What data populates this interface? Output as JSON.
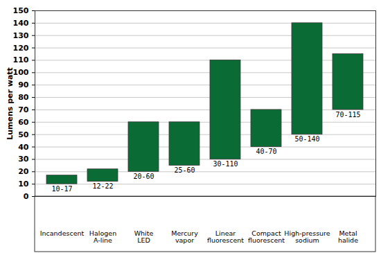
{
  "chart_data": {
    "type": "range_bar",
    "y_label": "Lumens per watt",
    "categories": [
      "Incandescent",
      "Halogen\nA-line",
      "White\nLED",
      "Mercury\nvapor",
      "Linear\nfluorescent",
      "Compact\nfluorescent",
      "High-pressure\nsodium",
      "Metal\nhalide"
    ],
    "values": [
      [
        10,
        17
      ],
      [
        12,
        22
      ],
      [
        20,
        60
      ],
      [
        25,
        60
      ],
      [
        30,
        110
      ],
      [
        40,
        70
      ],
      [
        50,
        140
      ],
      [
        70,
        115
      ]
    ],
    "value_labels": [
      "10-17",
      "12-22",
      "20-60",
      "25-60",
      "30-110",
      "40-70",
      "50-140",
      "70-115"
    ],
    "data_labels": true,
    "color": "#0b6b35",
    "ylim": [
      0,
      150
    ],
    "yticks": [
      0,
      10,
      20,
      30,
      40,
      50,
      60,
      70,
      80,
      90,
      100,
      110,
      120,
      130,
      140,
      150
    ],
    "grid": true
  }
}
